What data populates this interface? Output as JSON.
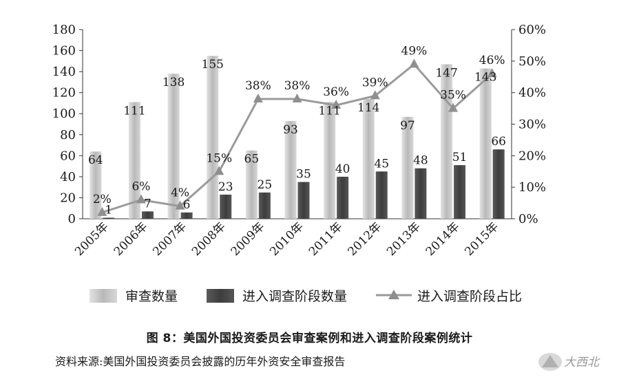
{
  "chart_data": {
    "type": "bar",
    "categories": [
      "2005年",
      "2006年",
      "2007年",
      "2008年",
      "2009年",
      "2010年",
      "2011年",
      "2012年",
      "2013年",
      "2014年",
      "2015年"
    ],
    "series": [
      {
        "name": "审查数量",
        "kind": "bar",
        "axis": "left",
        "color": "#bdbdbd",
        "values": [
          64,
          111,
          138,
          155,
          65,
          93,
          111,
          114,
          97,
          147,
          143
        ]
      },
      {
        "name": "进入调查阶段数量",
        "kind": "bar",
        "axis": "left",
        "color": "#4a4a4a",
        "values": [
          1,
          7,
          6,
          23,
          25,
          35,
          40,
          45,
          48,
          51,
          66
        ]
      },
      {
        "name": "进入调查阶段占比",
        "kind": "line",
        "axis": "right",
        "color": "#9a9a9a",
        "values": [
          2,
          6,
          4,
          15,
          38,
          38,
          36,
          39,
          49,
          35,
          46
        ],
        "labels": [
          "2%",
          "6%",
          "4%",
          "15%",
          "38%",
          "38%",
          "36%",
          "39%",
          "49%",
          "35%",
          "46%"
        ]
      }
    ],
    "y_left": {
      "range": [
        0,
        180
      ],
      "ticks": [
        "0",
        "20",
        "40",
        "60",
        "80",
        "100",
        "120",
        "140",
        "160",
        "180"
      ]
    },
    "y_right": {
      "range": [
        0,
        60
      ],
      "ticks": [
        "0%",
        "10%",
        "20%",
        "30%",
        "40%",
        "50%",
        "60%"
      ]
    },
    "grid": false,
    "legend_position": "bottom",
    "xlabel": "",
    "ylabel": ""
  },
  "caption": "图 8：美国外国投资委员会审查案例和进入调查阶段案例统计",
  "source": "资料来源:美国外国投资委员会披露的历年外资安全审查报告",
  "watermark": "大西北"
}
